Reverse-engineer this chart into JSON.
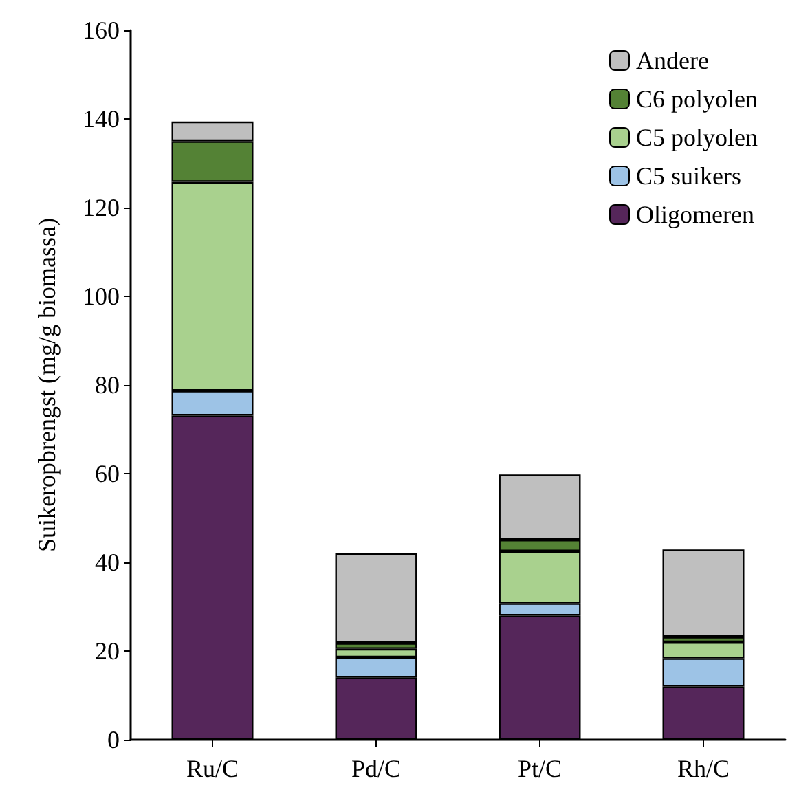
{
  "chart_data": {
    "type": "bar",
    "stacked": true,
    "ylabel": "Suikeropbrengst (mg/g biomassa)",
    "categories": [
      "Ru/C",
      "Pd/C",
      "Pt/C",
      "Rh/C"
    ],
    "series": [
      {
        "name": "Oligomeren",
        "color": "#55265a",
        "values": [
          73.1,
          14,
          28,
          12
        ]
      },
      {
        "name": "C5 suikers",
        "color": "#9dc3e6",
        "values": [
          5.6,
          4.6,
          2.8,
          6.4
        ]
      },
      {
        "name": "C5 polyolen",
        "color": "#a9d18e",
        "values": [
          47.1,
          1.9,
          11.7,
          3.6
        ]
      },
      {
        "name": "C6 polyolen",
        "color": "#548235",
        "values": [
          9.2,
          1.3,
          2.6,
          1.2
        ]
      },
      {
        "name": "Andere",
        "color": "#bfbfbf",
        "values": [
          4.4,
          20.2,
          14.7,
          19.7
        ]
      }
    ],
    "ylim": [
      0,
      160
    ],
    "yticks": [
      0,
      20,
      40,
      60,
      80,
      100,
      120,
      140,
      160
    ],
    "grid": false,
    "legend": "top right"
  }
}
